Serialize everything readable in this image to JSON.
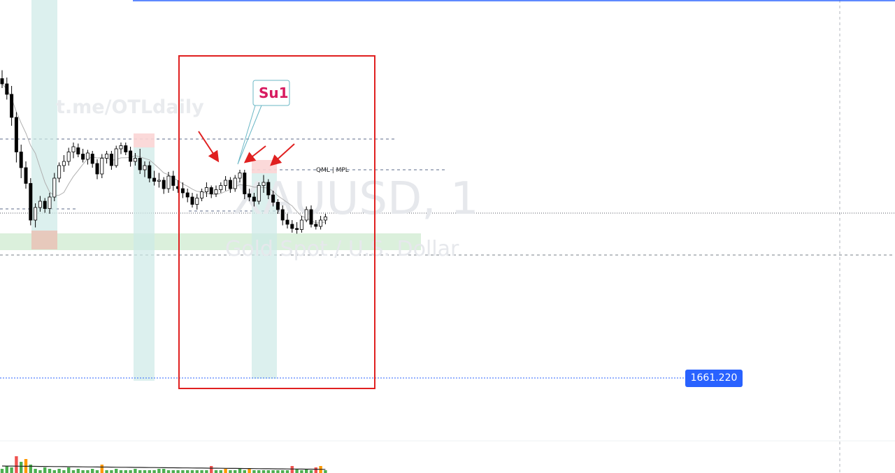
{
  "chart_data": {
    "type": "candlestick",
    "watermark": {
      "symbol": "XAUUSD, 1",
      "description": "Gold Spot / U.S. Dollar",
      "url": "t.me/OTLdaily"
    },
    "callout": {
      "label": "Su1"
    },
    "level_label": {
      "text": "QML | MPL"
    },
    "price_line": {
      "value": 1661.22,
      "label": "1661.220",
      "color": "#2962ff"
    },
    "colors": {
      "candle_up_fill": "#ffffff",
      "candle_down_fill": "#000000",
      "moving_average": "#b0b0b0",
      "annotation_red": "#e02020",
      "zone_teal": "#cdeae7",
      "zone_green": "#d5edd6",
      "zone_red": "#fbd5d5",
      "volume_green": "#4caf50",
      "volume_red": "#ef5350",
      "volume_orange": "#ff9800"
    },
    "candles": [
      [
        1678.5,
        1679.3,
        1677.6,
        1678.0
      ],
      [
        1678.0,
        1678.6,
        1676.5,
        1677.0
      ],
      [
        1677.0,
        1677.8,
        1674.0,
        1674.8
      ],
      [
        1674.8,
        1675.3,
        1670.5,
        1671.5
      ],
      [
        1671.5,
        1672.2,
        1669.0,
        1670.0
      ],
      [
        1670.0,
        1670.6,
        1668.0,
        1668.5
      ],
      [
        1668.5,
        1669.0,
        1664.5,
        1665.0
      ],
      [
        1665.0,
        1666.6,
        1664.3,
        1666.2
      ],
      [
        1666.2,
        1667.3,
        1665.8,
        1666.8
      ],
      [
        1666.8,
        1667.1,
        1665.7,
        1666.1
      ],
      [
        1666.1,
        1667.6,
        1665.6,
        1667.2
      ],
      [
        1667.2,
        1669.5,
        1666.8,
        1669.0
      ],
      [
        1669.0,
        1670.5,
        1668.6,
        1670.2
      ],
      [
        1670.2,
        1671.2,
        1669.6,
        1670.6
      ],
      [
        1670.6,
        1671.9,
        1670.2,
        1671.5
      ],
      [
        1671.5,
        1672.4,
        1670.9,
        1672.0
      ],
      [
        1671.9,
        1672.3,
        1671.0,
        1671.3
      ],
      [
        1671.3,
        1671.8,
        1670.5,
        1670.8
      ],
      [
        1670.8,
        1671.7,
        1670.3,
        1671.4
      ],
      [
        1671.3,
        1671.6,
        1670.0,
        1670.4
      ],
      [
        1670.4,
        1670.8,
        1668.9,
        1669.4
      ],
      [
        1669.4,
        1671.3,
        1669.0,
        1670.9
      ],
      [
        1670.9,
        1671.6,
        1670.4,
        1671.3
      ],
      [
        1671.3,
        1671.6,
        1669.8,
        1670.2
      ],
      [
        1670.2,
        1672.1,
        1670.0,
        1671.8
      ],
      [
        1671.8,
        1672.4,
        1671.3,
        1672.1
      ],
      [
        1672.1,
        1672.4,
        1671.2,
        1671.5
      ],
      [
        1671.6,
        1672.0,
        1670.1,
        1670.6
      ],
      [
        1670.6,
        1671.4,
        1670.2,
        1670.9
      ],
      [
        1670.9,
        1671.8,
        1669.4,
        1669.8
      ],
      [
        1669.8,
        1670.6,
        1669.1,
        1670.2
      ],
      [
        1670.2,
        1670.6,
        1668.6,
        1669.0
      ],
      [
        1669.0,
        1669.7,
        1668.3,
        1668.7
      ],
      [
        1668.7,
        1669.5,
        1668.1,
        1668.8
      ],
      [
        1668.8,
        1669.1,
        1667.5,
        1668.0
      ],
      [
        1668.0,
        1669.6,
        1667.6,
        1669.2
      ],
      [
        1669.2,
        1669.7,
        1667.8,
        1668.3
      ],
      [
        1668.2,
        1668.8,
        1667.6,
        1668.0
      ],
      [
        1668.0,
        1668.6,
        1667.1,
        1667.6
      ],
      [
        1667.6,
        1668.0,
        1666.7,
        1667.2
      ],
      [
        1667.2,
        1667.6,
        1666.2,
        1666.5
      ],
      [
        1666.5,
        1667.5,
        1666.0,
        1667.1
      ],
      [
        1667.1,
        1668.0,
        1666.8,
        1667.7
      ],
      [
        1667.7,
        1668.6,
        1667.2,
        1668.1
      ],
      [
        1668.1,
        1668.3,
        1667.1,
        1667.5
      ],
      [
        1667.5,
        1668.3,
        1667.2,
        1667.9
      ],
      [
        1667.9,
        1668.6,
        1667.6,
        1668.3
      ],
      [
        1668.3,
        1669.2,
        1667.8,
        1668.8
      ],
      [
        1668.8,
        1669.1,
        1667.6,
        1668.0
      ],
      [
        1668.0,
        1669.3,
        1667.7,
        1669.0
      ],
      [
        1669.0,
        1669.8,
        1668.6,
        1669.5
      ],
      [
        1669.5,
        1669.8,
        1667.0,
        1667.5
      ],
      [
        1667.5,
        1668.0,
        1666.8,
        1667.2
      ],
      [
        1667.2,
        1667.6,
        1666.3,
        1666.8
      ],
      [
        1666.8,
        1668.6,
        1666.5,
        1668.3
      ],
      [
        1668.3,
        1669.3,
        1667.6,
        1668.6
      ],
      [
        1668.6,
        1668.9,
        1667.0,
        1667.4
      ],
      [
        1667.4,
        1667.8,
        1666.3,
        1666.7
      ],
      [
        1666.7,
        1667.0,
        1665.6,
        1666.0
      ],
      [
        1666.0,
        1666.4,
        1664.5,
        1665.0
      ],
      [
        1665.0,
        1665.6,
        1664.2,
        1664.6
      ],
      [
        1664.6,
        1665.0,
        1663.8,
        1664.2
      ],
      [
        1664.2,
        1664.8,
        1663.7,
        1664.1
      ],
      [
        1664.1,
        1665.4,
        1663.8,
        1665.0
      ],
      [
        1665.0,
        1666.3,
        1664.8,
        1666.0
      ],
      [
        1666.0,
        1666.4,
        1664.3,
        1664.6
      ],
      [
        1664.6,
        1665.0,
        1664.1,
        1664.4
      ],
      [
        1664.4,
        1665.4,
        1664.1,
        1665.0
      ],
      [
        1665.0,
        1665.6,
        1664.6,
        1665.3
      ]
    ],
    "volume": [
      [
        3,
        "green"
      ],
      [
        5,
        "green"
      ],
      [
        4,
        "green"
      ],
      [
        12,
        "red"
      ],
      [
        8,
        "green"
      ],
      [
        10,
        "orange"
      ],
      [
        6,
        "green"
      ],
      [
        3,
        "green"
      ],
      [
        2,
        "green"
      ],
      [
        4,
        "green"
      ],
      [
        3,
        "green"
      ],
      [
        2,
        "green"
      ],
      [
        3,
        "green"
      ],
      [
        2,
        "green"
      ],
      [
        4,
        "green"
      ],
      [
        2,
        "green"
      ],
      [
        3,
        "green"
      ],
      [
        2,
        "green"
      ],
      [
        2,
        "green"
      ],
      [
        3,
        "green"
      ],
      [
        2,
        "green"
      ],
      [
        6,
        "orange"
      ],
      [
        2,
        "green"
      ],
      [
        2,
        "green"
      ],
      [
        3,
        "green"
      ],
      [
        2,
        "green"
      ],
      [
        2,
        "green"
      ],
      [
        2,
        "green"
      ],
      [
        3,
        "green"
      ],
      [
        2,
        "green"
      ],
      [
        2,
        "green"
      ],
      [
        2,
        "green"
      ],
      [
        2,
        "green"
      ],
      [
        3,
        "green"
      ],
      [
        3,
        "green"
      ],
      [
        2,
        "green"
      ],
      [
        2,
        "green"
      ],
      [
        2,
        "green"
      ],
      [
        2,
        "green"
      ],
      [
        2,
        "green"
      ],
      [
        2,
        "green"
      ],
      [
        2,
        "green"
      ],
      [
        2,
        "green"
      ],
      [
        2,
        "green"
      ],
      [
        5,
        "red"
      ],
      [
        2,
        "green"
      ],
      [
        2,
        "green"
      ],
      [
        3,
        "orange"
      ],
      [
        2,
        "green"
      ],
      [
        2,
        "green"
      ],
      [
        3,
        "green"
      ],
      [
        2,
        "green"
      ],
      [
        3,
        "orange"
      ],
      [
        2,
        "green"
      ],
      [
        2,
        "green"
      ],
      [
        2,
        "green"
      ],
      [
        2,
        "green"
      ],
      [
        2,
        "green"
      ],
      [
        2,
        "green"
      ],
      [
        2,
        "green"
      ],
      [
        2,
        "green"
      ],
      [
        5,
        "red"
      ],
      [
        3,
        "green"
      ],
      [
        2,
        "green"
      ],
      [
        3,
        "green"
      ],
      [
        2,
        "green"
      ],
      [
        4,
        "red"
      ],
      [
        5,
        "orange"
      ],
      [
        2,
        "green"
      ]
    ]
  }
}
